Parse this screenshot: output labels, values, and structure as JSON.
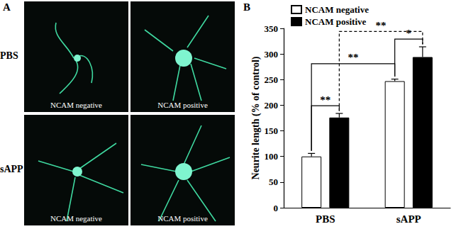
{
  "panel_a": {
    "label": "A",
    "rows": [
      "PBS",
      "sAPP"
    ],
    "columns": [
      "NCAM negative",
      "NCAM positive"
    ]
  },
  "chart_data": {
    "type": "bar",
    "panel_label": "B",
    "categories": [
      "PBS",
      "sAPP"
    ],
    "ylabel": "Neurite length (% of control)",
    "ylim": [
      0,
      350
    ],
    "yticks": [
      0,
      50,
      100,
      150,
      200,
      250,
      300,
      350
    ],
    "grid": false,
    "legend": "upper left",
    "series": [
      {
        "name": "NCAM negative",
        "color": "#ffffff",
        "values": [
          100,
          247
        ],
        "errors": [
          6,
          4
        ]
      },
      {
        "name": "NCAM positive",
        "color": "#000000",
        "values": [
          176,
          294
        ],
        "errors": [
          8,
          20
        ]
      }
    ],
    "annotations": [
      {
        "text": "**",
        "from": [
          "PBS",
          "NCAM negative"
        ],
        "to": [
          "PBS",
          "NCAM positive"
        ],
        "line_style": "solid"
      },
      {
        "text": "**",
        "from": [
          "PBS",
          "NCAM negative"
        ],
        "to": [
          "sAPP",
          "NCAM negative"
        ],
        "line_style": "solid"
      },
      {
        "text": "**",
        "from": [
          "PBS",
          "NCAM positive"
        ],
        "to": [
          "sAPP",
          "NCAM positive"
        ],
        "line_style": "dashed"
      },
      {
        "text": "*",
        "from": [
          "sAPP",
          "NCAM negative"
        ],
        "to": [
          "sAPP",
          "NCAM positive"
        ],
        "line_style": "solid"
      }
    ]
  }
}
